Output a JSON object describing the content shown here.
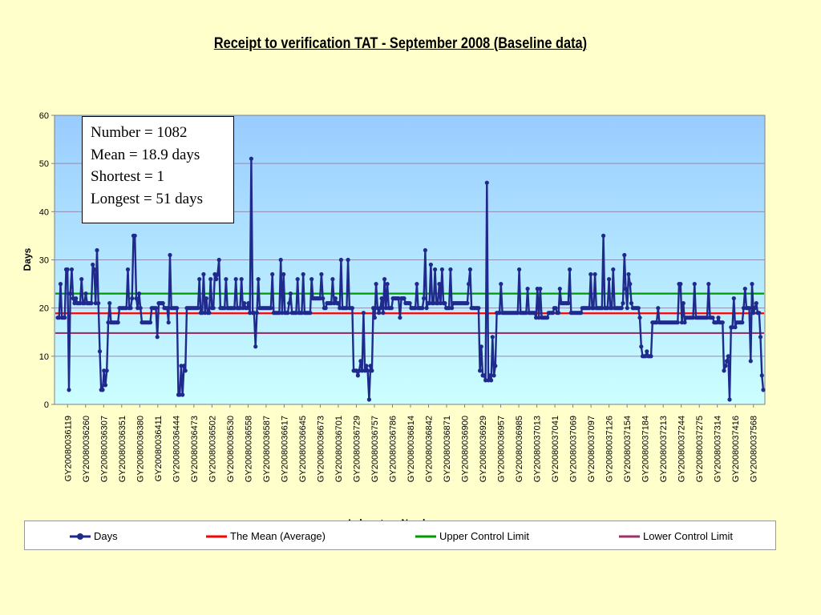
{
  "chart_data": {
    "type": "line",
    "title": "Receipt to verification TAT - September 2008 (Baseline data)",
    "xlabel": "Laboratory Number",
    "ylabel": "Days",
    "ylim": [
      0,
      60
    ],
    "yticks": [
      0,
      10,
      20,
      30,
      40,
      50,
      60
    ],
    "grid": true,
    "legend_position": "bottom",
    "x_tick_labels": [
      "GY20080036119",
      "GY20080036260",
      "GY20080036307",
      "GY20080036351",
      "GY20080036380",
      "GY20080036411",
      "GY20080036444",
      "GY20080036473",
      "GY20080036502",
      "GY20080036530",
      "GY20080036558",
      "GY20080036587",
      "GY20080036617",
      "GY20080036645",
      "GY20080036673",
      "GY20080036701",
      "GY20080036729",
      "GY20080036757",
      "GY20080036786",
      "GY20080036814",
      "GY20080036842",
      "GY20080036871",
      "GY20080036900",
      "GY20080036929",
      "GY20080036957",
      "GY20080036985",
      "GY20080037013",
      "GY20080037041",
      "GY20080037069",
      "GY20080037097",
      "GY20080037126",
      "GY20080037154",
      "GY20080037184",
      "GY20080037213",
      "GY20080037244",
      "GY20080037275",
      "GY20080037314",
      "GY20080037416",
      "GY20080037568"
    ],
    "series": [
      {
        "name": "Days",
        "color": "#1F2A8C",
        "marker": "circle",
        "points_per_label": 10,
        "values": [
          18,
          18,
          25,
          18,
          18,
          18,
          28,
          28,
          3,
          23,
          28,
          22,
          21,
          22,
          21,
          21,
          21,
          26,
          21,
          21,
          23,
          21,
          21,
          21,
          21,
          29,
          28,
          21,
          32,
          21,
          11,
          3,
          3,
          7,
          4,
          7,
          17,
          21,
          17,
          17,
          17,
          17,
          17,
          17,
          20,
          20,
          20,
          20,
          20,
          20,
          28,
          20,
          20,
          22,
          35,
          35,
          22,
          20,
          23,
          20,
          17,
          17,
          17,
          17,
          17,
          17,
          17,
          20,
          20,
          20,
          20,
          14,
          21,
          21,
          21,
          21,
          20,
          20,
          20,
          17,
          31,
          20,
          20,
          20,
          20,
          20,
          2,
          2,
          8,
          2,
          8,
          7,
          20,
          20,
          20,
          20,
          20,
          20,
          20,
          20,
          20,
          26,
          19,
          19,
          27,
          19,
          22,
          19,
          19,
          26,
          20,
          20,
          27,
          26,
          27,
          30,
          20,
          20,
          20,
          20,
          26,
          20,
          20,
          20,
          20,
          20,
          20,
          26,
          20,
          20,
          20,
          26,
          20,
          21,
          20,
          20,
          21,
          19,
          51,
          19,
          19,
          12,
          19,
          26,
          20,
          20,
          20,
          20,
          20,
          20,
          20,
          20,
          20,
          27,
          19,
          19,
          19,
          19,
          19,
          30,
          19,
          27,
          19,
          19,
          19,
          21,
          23,
          19,
          19,
          19,
          19,
          26,
          19,
          19,
          19,
          27,
          19,
          19,
          19,
          19,
          19,
          26,
          22,
          22,
          22,
          22,
          22,
          22,
          27,
          22,
          20,
          20,
          21,
          21,
          21,
          21,
          26,
          21,
          22,
          21,
          21,
          20,
          30,
          20,
          20,
          20,
          20,
          30,
          20,
          20,
          20,
          7,
          7,
          7,
          6,
          7,
          9,
          7,
          19,
          7,
          8,
          7,
          1,
          8,
          7,
          20,
          18,
          25,
          20,
          19,
          20,
          22,
          19,
          26,
          20,
          25,
          20,
          20,
          20,
          22,
          22,
          22,
          22,
          22,
          18,
          22,
          22,
          22,
          21,
          21,
          21,
          21,
          20,
          20,
          20,
          20,
          25,
          20,
          20,
          20,
          20,
          22,
          32,
          20,
          21,
          21,
          29,
          21,
          21,
          28,
          21,
          21,
          25,
          21,
          28,
          21,
          21,
          20,
          20,
          20,
          28,
          20,
          21,
          21,
          21,
          21,
          21,
          21,
          21,
          21,
          21,
          21,
          21,
          25,
          28,
          20,
          20,
          20,
          20,
          20,
          20,
          7,
          12,
          6,
          6,
          5,
          46,
          5,
          6,
          5,
          14,
          6,
          8,
          19,
          19,
          19,
          25,
          19,
          19,
          19,
          19,
          19,
          19,
          19,
          19,
          19,
          19,
          19,
          19,
          28,
          19,
          19,
          19,
          19,
          19,
          24,
          19,
          19,
          19,
          19,
          19,
          18,
          24,
          18,
          24,
          18,
          18,
          18,
          18,
          18,
          19,
          19,
          19,
          19,
          20,
          20,
          19,
          19,
          24,
          21,
          21,
          21,
          21,
          21,
          21,
          28,
          19,
          19,
          19,
          19,
          19,
          19,
          19,
          19,
          20,
          20,
          20,
          20,
          20,
          20,
          27,
          20,
          20,
          27,
          20,
          20,
          20,
          20,
          20,
          35,
          20,
          20,
          20,
          26,
          20,
          20,
          28,
          20,
          20,
          20,
          20,
          20,
          20,
          21,
          31,
          24,
          20,
          27,
          25,
          21,
          20,
          20,
          20,
          20,
          20,
          18,
          12,
          10,
          10,
          10,
          11,
          10,
          10,
          10,
          17,
          17,
          17,
          17,
          20,
          17,
          17,
          17,
          17,
          17,
          17,
          17,
          17,
          17,
          17,
          17,
          17,
          17,
          17,
          25,
          25,
          17,
          21,
          17,
          18,
          18,
          18,
          18,
          18,
          18,
          25,
          18,
          18,
          18,
          18,
          18,
          18,
          18,
          18,
          18,
          25,
          18,
          18,
          18,
          17,
          17,
          17,
          18,
          17,
          17,
          17,
          7,
          8,
          9,
          10,
          1,
          16,
          16,
          22,
          16,
          17,
          17,
          17,
          17,
          17,
          20,
          24,
          20,
          20,
          20,
          9,
          25,
          19,
          20,
          21,
          19,
          19,
          14,
          6,
          3
        ],
        "start_x_index": 0
      },
      {
        "name": "The Mean (Average)",
        "color": "#FF0000",
        "constant": 18.9
      },
      {
        "name": "Upper Control Limit",
        "color": "#009900",
        "constant": 23
      },
      {
        "name": "Lower Control Limit",
        "color": "#993366",
        "constant": 14.8
      }
    ]
  },
  "stats_box": {
    "line1": "Number = 1082",
    "line2": "Mean = 18.9 days",
    "line3": "Shortest = 1",
    "line4": "Longest = 51 days"
  },
  "legend": {
    "days": "Days",
    "mean": "The Mean (Average)",
    "ucl": "Upper Control Limit",
    "lcl": "Lower Control Limit"
  }
}
